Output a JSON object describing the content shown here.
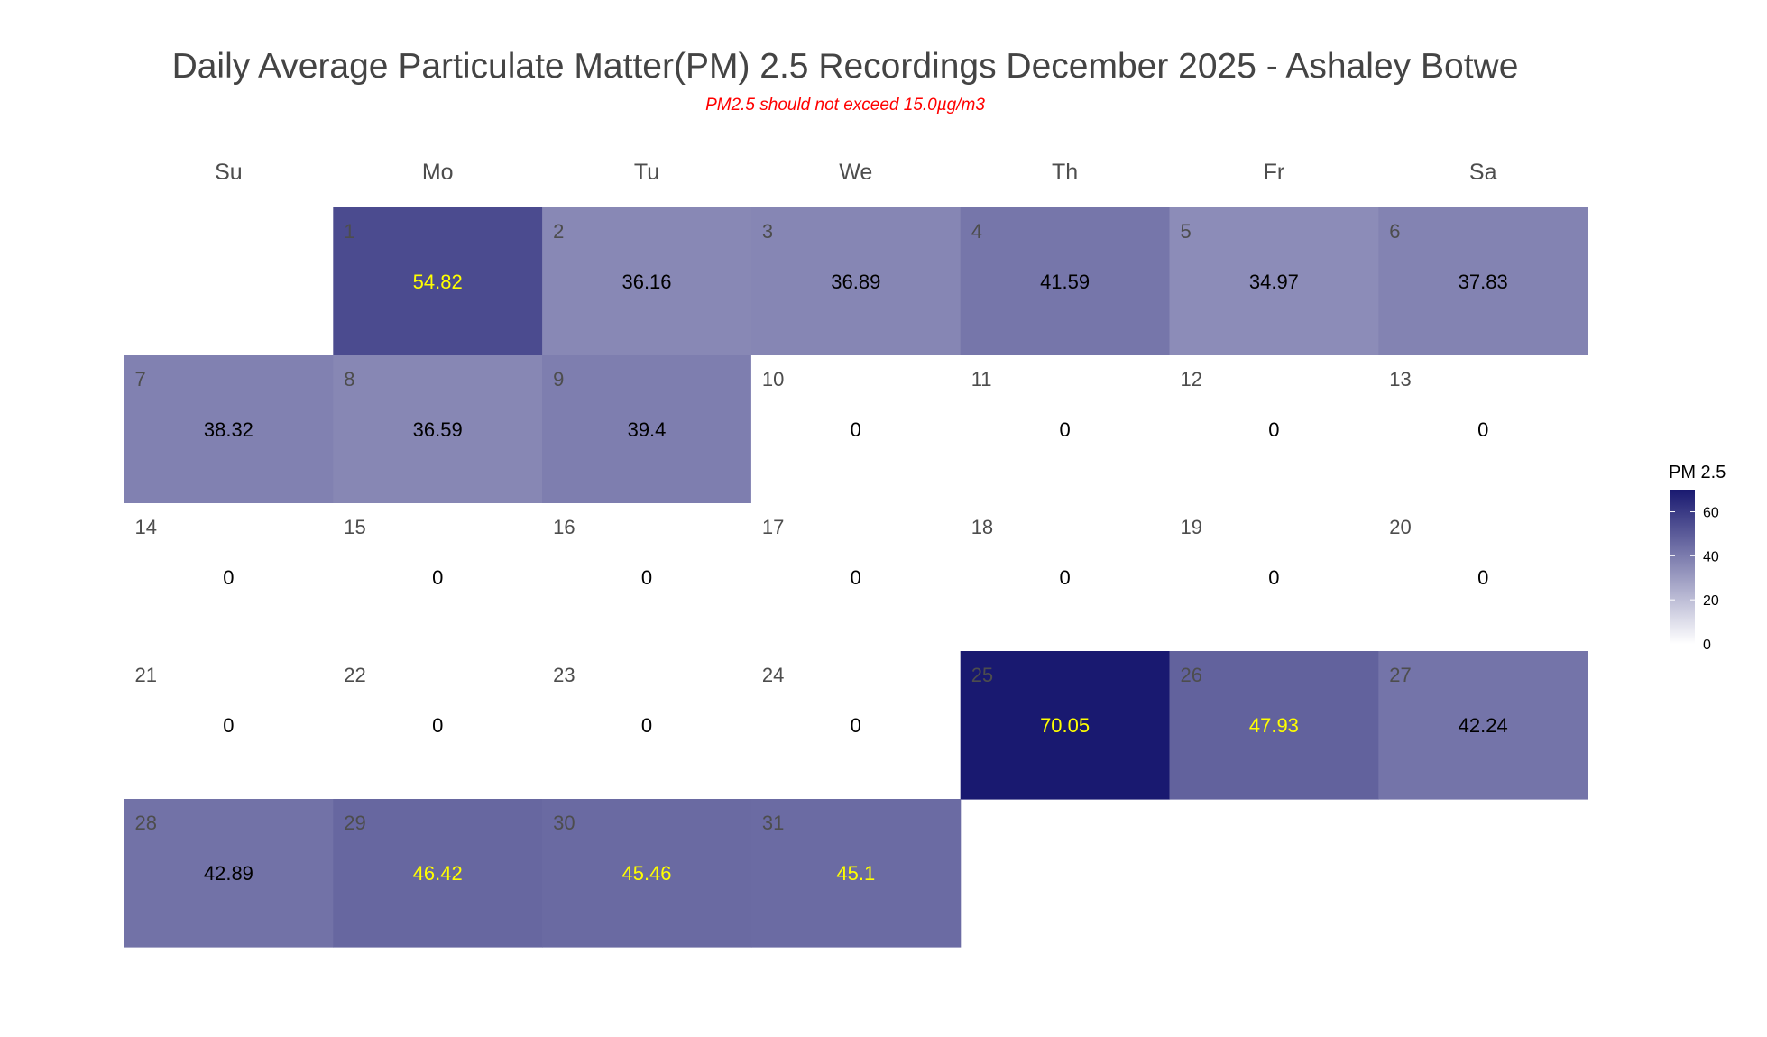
{
  "chart_data": {
    "type": "heatmap",
    "title": "Daily Average Particulate Matter(PM) 2.5 Recordings December 2025 -  Ashaley Botwe",
    "subtitle": "PM2.5 should not exceed 15.0µg/m3",
    "weekdays": [
      "Su",
      "Mo",
      "Tu",
      "We",
      "Th",
      "Fr",
      "Sa"
    ],
    "first_weekday_index": 1,
    "days": [
      1,
      2,
      3,
      4,
      5,
      6,
      7,
      8,
      9,
      10,
      11,
      12,
      13,
      14,
      15,
      16,
      17,
      18,
      19,
      20,
      21,
      22,
      23,
      24,
      25,
      26,
      27,
      28,
      29,
      30,
      31
    ],
    "values": [
      54.82,
      36.16,
      36.89,
      41.59,
      34.97,
      37.83,
      38.32,
      36.59,
      39.4,
      0,
      0,
      0,
      0,
      0,
      0,
      0,
      0,
      0,
      0,
      0,
      0,
      0,
      0,
      0,
      70.05,
      47.93,
      42.24,
      42.89,
      46.42,
      45.46,
      45.1
    ],
    "value_labels": [
      "54.82",
      "36.16",
      "36.89",
      "41.59",
      "34.97",
      "37.83",
      "38.32",
      "36.59",
      "39.4",
      "0",
      "0",
      "0",
      "0",
      "0",
      "0",
      "0",
      "0",
      "0",
      "0",
      "0",
      "0",
      "0",
      "0",
      "0",
      "70.05",
      "47.93",
      "42.24",
      "42.89",
      "46.42",
      "45.46",
      "45.1"
    ],
    "label_color_threshold": 45,
    "label_colors": {
      "high": "#ffff00",
      "low": "#000000"
    },
    "legend": {
      "title": "PM 2.5",
      "ticks": [
        0,
        20,
        40,
        60
      ],
      "tick_labels": [
        "0",
        "20",
        "40",
        "60"
      ],
      "range": [
        0,
        70.05
      ],
      "placement": "right"
    },
    "colors": {
      "low": "#ffffff",
      "high": "#191970"
    }
  }
}
